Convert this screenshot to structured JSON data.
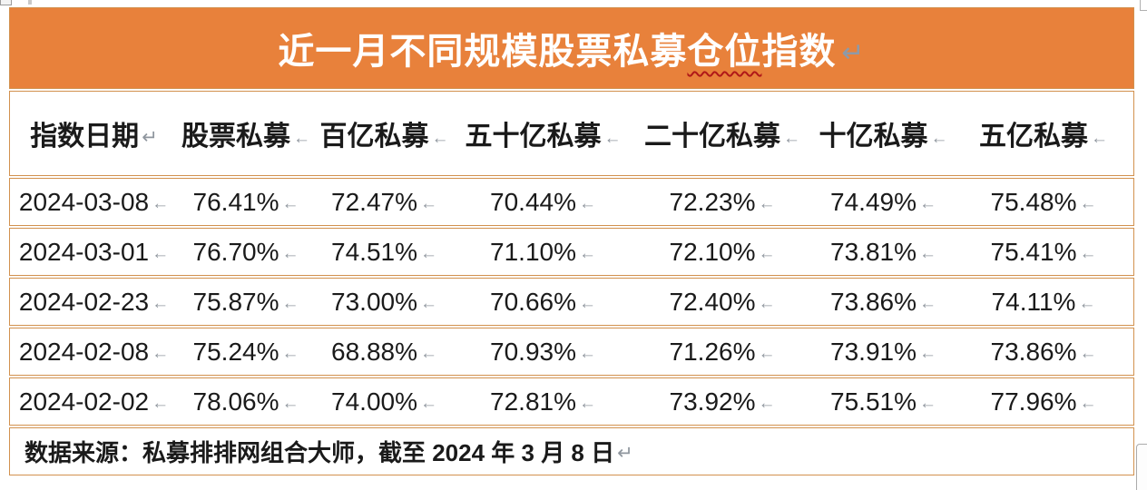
{
  "banner": {
    "title_part1": "近一月不同规模股票私募",
    "title_misspelled": "仓位",
    "title_part2": "指数",
    "mark": "↵"
  },
  "marks": {
    "paragraph": "↵",
    "cell": "←"
  },
  "table": {
    "headers": [
      {
        "label": "指数日期",
        "mark": "↵"
      },
      {
        "label": "股票私募",
        "mark": "←"
      },
      {
        "label": "百亿私募",
        "mark": "←"
      },
      {
        "label": "五十亿私募",
        "mark": "←"
      },
      {
        "label": "二十亿私募",
        "mark": "←"
      },
      {
        "label": "十亿私募",
        "mark": "←"
      },
      {
        "label": "五亿私募",
        "mark": "←"
      }
    ],
    "rows": [
      [
        "2024-03-08",
        "76.41%",
        "72.47%",
        "70.44%",
        "72.23%",
        "74.49%",
        "75.48%"
      ],
      [
        "2024-03-01",
        "76.70%",
        "74.51%",
        "71.10%",
        "72.10%",
        "73.81%",
        "75.41%"
      ],
      [
        "2024-02-23",
        "75.87%",
        "73.00%",
        "70.66%",
        "72.40%",
        "73.86%",
        "74.11%"
      ],
      [
        "2024-02-08",
        "75.24%",
        "68.88%",
        "70.93%",
        "71.26%",
        "73.91%",
        "73.86%"
      ],
      [
        "2024-02-02",
        "78.06%",
        "74.00%",
        "72.81%",
        "73.92%",
        "75.51%",
        "77.96%"
      ]
    ]
  },
  "footer": {
    "text": "数据来源：私募排排网组合大师，截至 2024 年 3 月 8 日",
    "mark": "↵"
  },
  "colors": {
    "banner_orange": "#E8813B",
    "table_border": "#D2914E",
    "title_text": "#FFFFFF",
    "body_text": "#1A1A1A",
    "formatting_mark": "#8F969E",
    "spellcheck_squiggle": "#B01818"
  }
}
